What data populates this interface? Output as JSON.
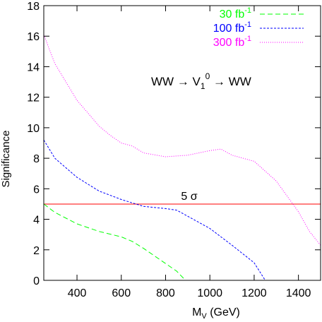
{
  "chart_data": {
    "type": "line",
    "title": "",
    "xlabel": "M",
    "xlabel_sub": "V",
    "xlabel_unit": " (GeV)",
    "ylabel": "Significance",
    "xlim": [
      250,
      1500
    ],
    "ylim": [
      0,
      18
    ],
    "xticks": [
      400,
      600,
      800,
      1000,
      1200,
      1400
    ],
    "yticks": [
      0,
      2,
      4,
      6,
      8,
      10,
      12,
      14,
      16,
      18
    ],
    "grid": false,
    "legend_position": "top-right",
    "annotation": {
      "pre": "WW → V",
      "sub": "1",
      "sup": "0",
      "post": " → WW"
    },
    "reference_line": {
      "y": 5,
      "label": "5 σ",
      "color": "#ff0000"
    },
    "series": [
      {
        "name_main": "30 fb",
        "name_sup": "-1",
        "color": "#00ff00",
        "dash": "dashed",
        "x": [
          250,
          300,
          400,
          500,
          600,
          650,
          700,
          800,
          850,
          890
        ],
        "y": [
          5.0,
          4.45,
          3.7,
          3.2,
          2.85,
          2.55,
          2.1,
          1.1,
          0.6,
          0.0
        ]
      },
      {
        "name_main": "100 fb",
        "name_sup": "-1",
        "color": "#0000ff",
        "dash": "dense",
        "x": [
          250,
          300,
          400,
          500,
          600,
          700,
          800,
          850,
          900,
          1000,
          1100,
          1200,
          1250
        ],
        "y": [
          9.2,
          8.0,
          6.75,
          5.85,
          5.3,
          4.85,
          4.7,
          4.6,
          4.2,
          3.4,
          2.3,
          1.15,
          0.0
        ]
      },
      {
        "name_main": "300 fb",
        "name_sup": "-1",
        "color": "#ff00ff",
        "dash": "dotted",
        "x": [
          250,
          300,
          400,
          500,
          550,
          600,
          650,
          700,
          800,
          900,
          1000,
          1050,
          1100,
          1200,
          1300,
          1400,
          1450,
          1500
        ],
        "y": [
          16.1,
          14.2,
          11.8,
          10.1,
          9.5,
          9.0,
          8.8,
          8.35,
          8.1,
          8.2,
          8.5,
          8.6,
          8.2,
          7.8,
          6.5,
          4.5,
          3.2,
          2.3
        ]
      }
    ]
  }
}
